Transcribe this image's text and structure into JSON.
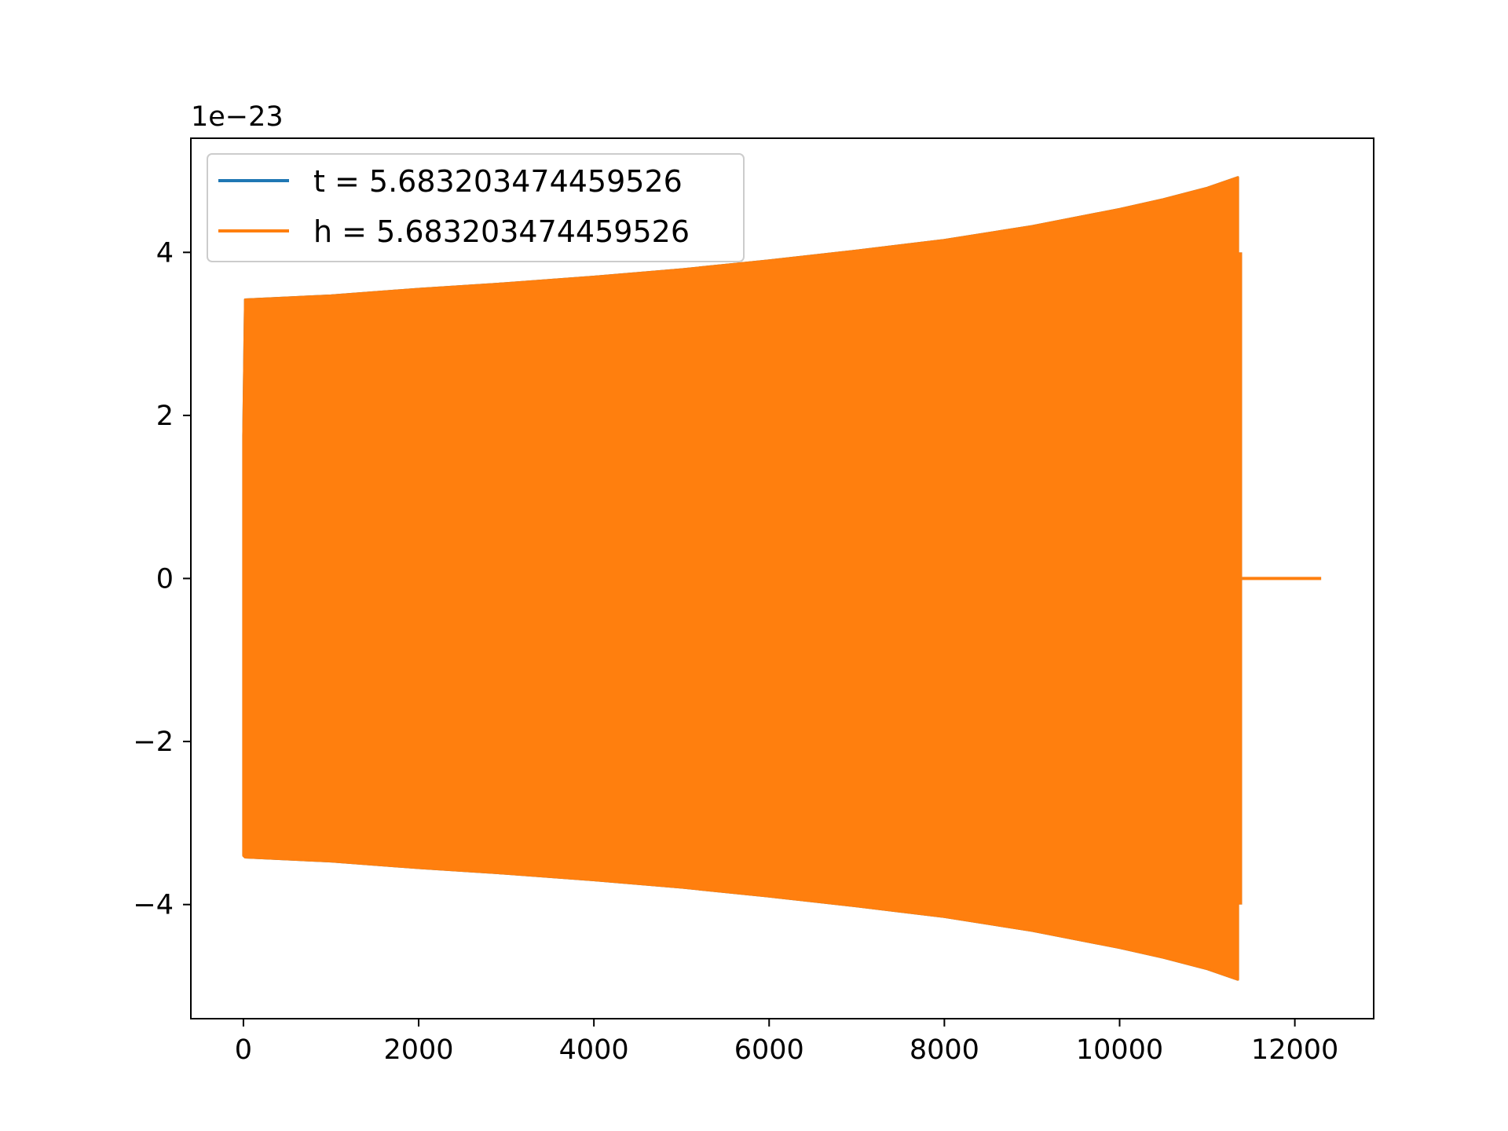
{
  "chart_data": {
    "type": "line",
    "title": "",
    "xlabel": "",
    "ylabel": "",
    "y_offset_label": "1e−23",
    "xlim": [
      -600,
      12900
    ],
    "ylim": [
      -5.4,
      5.4
    ],
    "xticks": [
      0,
      2000,
      4000,
      6000,
      8000,
      10000,
      12000
    ],
    "xtick_labels": [
      "0",
      "2000",
      "4000",
      "6000",
      "8000",
      "10000",
      "12000"
    ],
    "yticks": [
      -4,
      -2,
      0,
      2,
      4
    ],
    "ytick_labels": [
      "−4",
      "−2",
      "0",
      "2",
      "4"
    ],
    "grid": false,
    "legend_position": "upper-left",
    "series": [
      {
        "name": "t = 5.683203474459526",
        "color": "#1f77b4",
        "envelope_x": [
          0,
          20,
          1000,
          2000,
          3000,
          4000,
          5000,
          6000,
          7000,
          8000,
          9000,
          10000,
          10500,
          11000,
          11350
        ],
        "envelope_upper": [
          1.75,
          3.42,
          3.47,
          3.55,
          3.62,
          3.7,
          3.79,
          3.9,
          4.02,
          4.15,
          4.32,
          4.53,
          4.65,
          4.79,
          4.92
        ],
        "envelope_lower": [
          -3.4,
          -3.42,
          -3.47,
          -3.55,
          -3.62,
          -3.7,
          -3.79,
          -3.9,
          -4.02,
          -4.15,
          -4.32,
          -4.53,
          -4.65,
          -4.79,
          -4.92
        ],
        "tail_x": [
          11400,
          12300
        ],
        "tail_y": [
          0,
          0
        ]
      },
      {
        "name": "h = 5.683203474459526",
        "color": "#ff7f0e",
        "envelope_x": [
          0,
          20,
          1000,
          2000,
          3000,
          4000,
          5000,
          6000,
          7000,
          8000,
          9000,
          10000,
          10500,
          11000,
          11350
        ],
        "envelope_upper": [
          1.75,
          3.42,
          3.47,
          3.55,
          3.62,
          3.7,
          3.79,
          3.9,
          4.02,
          4.15,
          4.32,
          4.53,
          4.65,
          4.79,
          4.92
        ],
        "envelope_lower": [
          -3.4,
          -3.42,
          -3.47,
          -3.55,
          -3.62,
          -3.7,
          -3.79,
          -3.9,
          -4.02,
          -4.15,
          -4.32,
          -4.53,
          -4.65,
          -4.79,
          -4.92
        ],
        "tail_x": [
          11400,
          12300
        ],
        "tail_y": [
          0,
          0
        ]
      }
    ]
  }
}
